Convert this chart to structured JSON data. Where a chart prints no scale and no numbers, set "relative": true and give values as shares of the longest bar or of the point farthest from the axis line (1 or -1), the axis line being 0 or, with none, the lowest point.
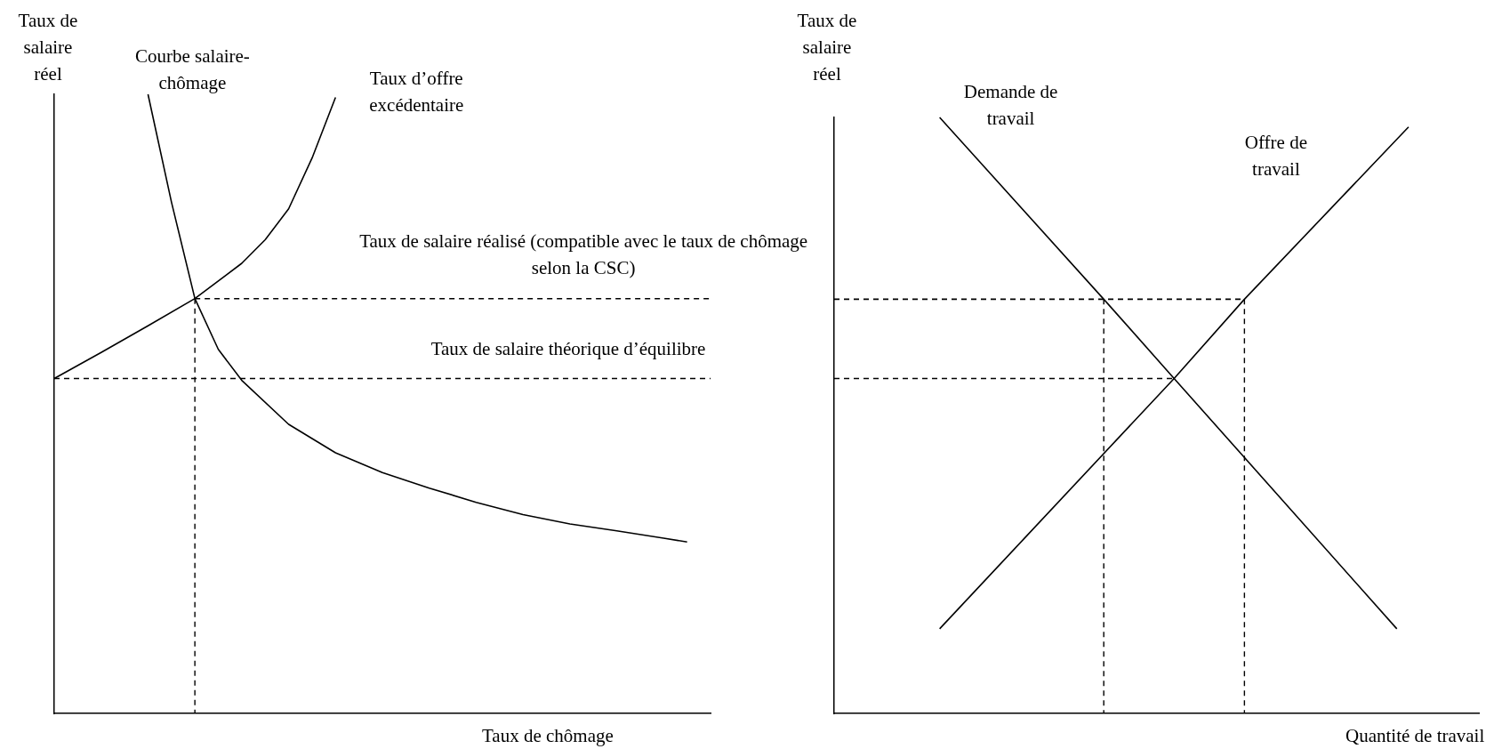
{
  "chart_data": [
    {
      "type": "line",
      "relative": true,
      "tick_labels": false,
      "xlabel": "Taux de chômage",
      "ylabel": "Taux de salaire réel",
      "categories": [
        null,
        null,
        null,
        null,
        null,
        null,
        null,
        null,
        null,
        null,
        null,
        null,
        null,
        null,
        null,
        null,
        null,
        null,
        null,
        null,
        null,
        null,
        null,
        null,
        null,
        null,
        null,
        null,
        null
      ],
      "series": [
        {
          "name": "Courbe salaire-chômage",
          "color": "#000000",
          "values": [
            null,
            null,
            null,
            null,
            1.0,
            0.826,
            0.67,
            0.588,
            0.538,
            null,
            0.467,
            null,
            0.421,
            null,
            0.389,
            null,
            0.364,
            null,
            0.341,
            null,
            0.321,
            null,
            0.306,
            null,
            0.295,
            null,
            0.283,
            0.277,
            null
          ]
        },
        {
          "name": "Taux d’offre excédentaire",
          "color": "#000000",
          "values": [
            0.541,
            null,
            0.583,
            null,
            0.626,
            null,
            0.67,
            null,
            0.727,
            0.765,
            0.815,
            0.897,
            0.995,
            null,
            null,
            null,
            null,
            null,
            null,
            null,
            null,
            null,
            null,
            null,
            null,
            null,
            null,
            null,
            null
          ]
        },
        {
          "name": "Taux de salaire réalisé (compatible avec le taux de chômage selon la CSC)",
          "color": "#000000",
          "line_style": "dashed",
          "values": [
            null,
            null,
            null,
            null,
            null,
            null,
            0.67,
            0.67,
            0.67,
            0.67,
            0.67,
            0.67,
            0.67,
            0.67,
            0.67,
            0.67,
            0.67,
            0.67,
            0.67,
            0.67,
            0.67,
            0.67,
            0.67,
            0.67,
            0.67,
            0.67,
            0.67,
            0.67,
            0.67
          ]
        },
        {
          "name": "Taux de salaire théorique d’équilibre",
          "color": "#000000",
          "line_style": "dashed",
          "values": [
            0.541,
            0.541,
            0.541,
            0.541,
            0.541,
            0.541,
            0.541,
            0.541,
            0.541,
            0.541,
            0.541,
            0.541,
            0.541,
            0.541,
            0.541,
            0.541,
            0.541,
            0.541,
            0.541,
            0.541,
            0.541,
            0.541,
            0.541,
            0.541,
            0.541,
            0.541,
            0.541,
            0.541,
            0.541
          ]
        }
      ]
    },
    {
      "type": "line",
      "relative": true,
      "tick_labels": false,
      "xlabel": "Quantité de travail",
      "ylabel": "Taux de salaire réel",
      "categories": [
        null,
        null,
        null,
        null,
        null,
        null,
        null,
        null,
        null,
        null,
        null,
        null,
        null,
        null,
        null,
        null,
        null,
        null,
        null,
        null,
        null,
        null,
        null,
        null,
        null,
        null,
        null,
        null,
        null,
        null,
        null,
        null,
        null,
        null,
        null,
        null,
        null,
        null,
        null,
        null,
        null,
        null,
        null,
        null,
        null,
        null,
        null,
        null,
        null,
        null,
        null,
        null,
        null,
        null,
        null,
        null
      ],
      "series": [
        {
          "name": "Demande de travail",
          "color": "#000000",
          "values": [
            null,
            null,
            null,
            null,
            null,
            null,
            null,
            null,
            null,
            1.0,
            null,
            null,
            null,
            null,
            null,
            null,
            null,
            null,
            null,
            null,
            null,
            null,
            null,
            0.695,
            null,
            null,
            null,
            null,
            null,
            0.562,
            null,
            null,
            null,
            null,
            null,
            null,
            null,
            null,
            null,
            null,
            null,
            null,
            null,
            null,
            null,
            null,
            null,
            null,
            0.142,
            null,
            null,
            null,
            null,
            null,
            null,
            null
          ]
        },
        {
          "name": "Offre de travail",
          "color": "#000000",
          "values": [
            null,
            null,
            null,
            null,
            null,
            null,
            null,
            null,
            null,
            0.142,
            null,
            null,
            null,
            null,
            null,
            null,
            null,
            null,
            null,
            null,
            null,
            null,
            null,
            null,
            null,
            null,
            null,
            null,
            null,
            0.562,
            null,
            null,
            null,
            null,
            null,
            0.695,
            null,
            null,
            null,
            null,
            null,
            null,
            null,
            null,
            null,
            null,
            null,
            null,
            null,
            0.984,
            null,
            null,
            null,
            null,
            null,
            null
          ]
        },
        {
          "color": "#000000",
          "line_style": "dashed",
          "values": [
            0.562,
            0.562,
            0.562,
            0.562,
            0.562,
            0.562,
            0.562,
            0.562,
            0.562,
            0.562,
            0.562,
            0.562,
            0.562,
            0.562,
            0.562,
            0.562,
            0.562,
            0.562,
            0.562,
            0.562,
            0.562,
            0.562,
            0.562,
            0.562,
            0.562,
            0.562,
            0.562,
            0.562,
            0.562,
            0.562,
            null,
            null,
            null,
            null,
            null,
            null,
            null,
            null,
            null,
            null,
            null,
            null,
            null,
            null,
            null,
            null,
            null,
            null,
            null,
            null,
            null,
            null,
            null,
            null,
            null,
            null
          ]
        },
        {
          "color": "#000000",
          "line_style": "dashed",
          "values": [
            0.695,
            0.695,
            0.695,
            0.695,
            0.695,
            0.695,
            0.695,
            0.695,
            0.695,
            0.695,
            0.695,
            0.695,
            0.695,
            0.695,
            0.695,
            0.695,
            0.695,
            0.695,
            0.695,
            0.695,
            0.695,
            0.695,
            0.695,
            0.695,
            0.695,
            0.695,
            0.695,
            0.695,
            0.695,
            0.695,
            0.695,
            0.695,
            0.695,
            0.695,
            0.695,
            0.695,
            null,
            null,
            null,
            null,
            null,
            null,
            null,
            null,
            null,
            null,
            null,
            null,
            null,
            null,
            null,
            null,
            null,
            null,
            null,
            null
          ]
        }
      ]
    }
  ]
}
